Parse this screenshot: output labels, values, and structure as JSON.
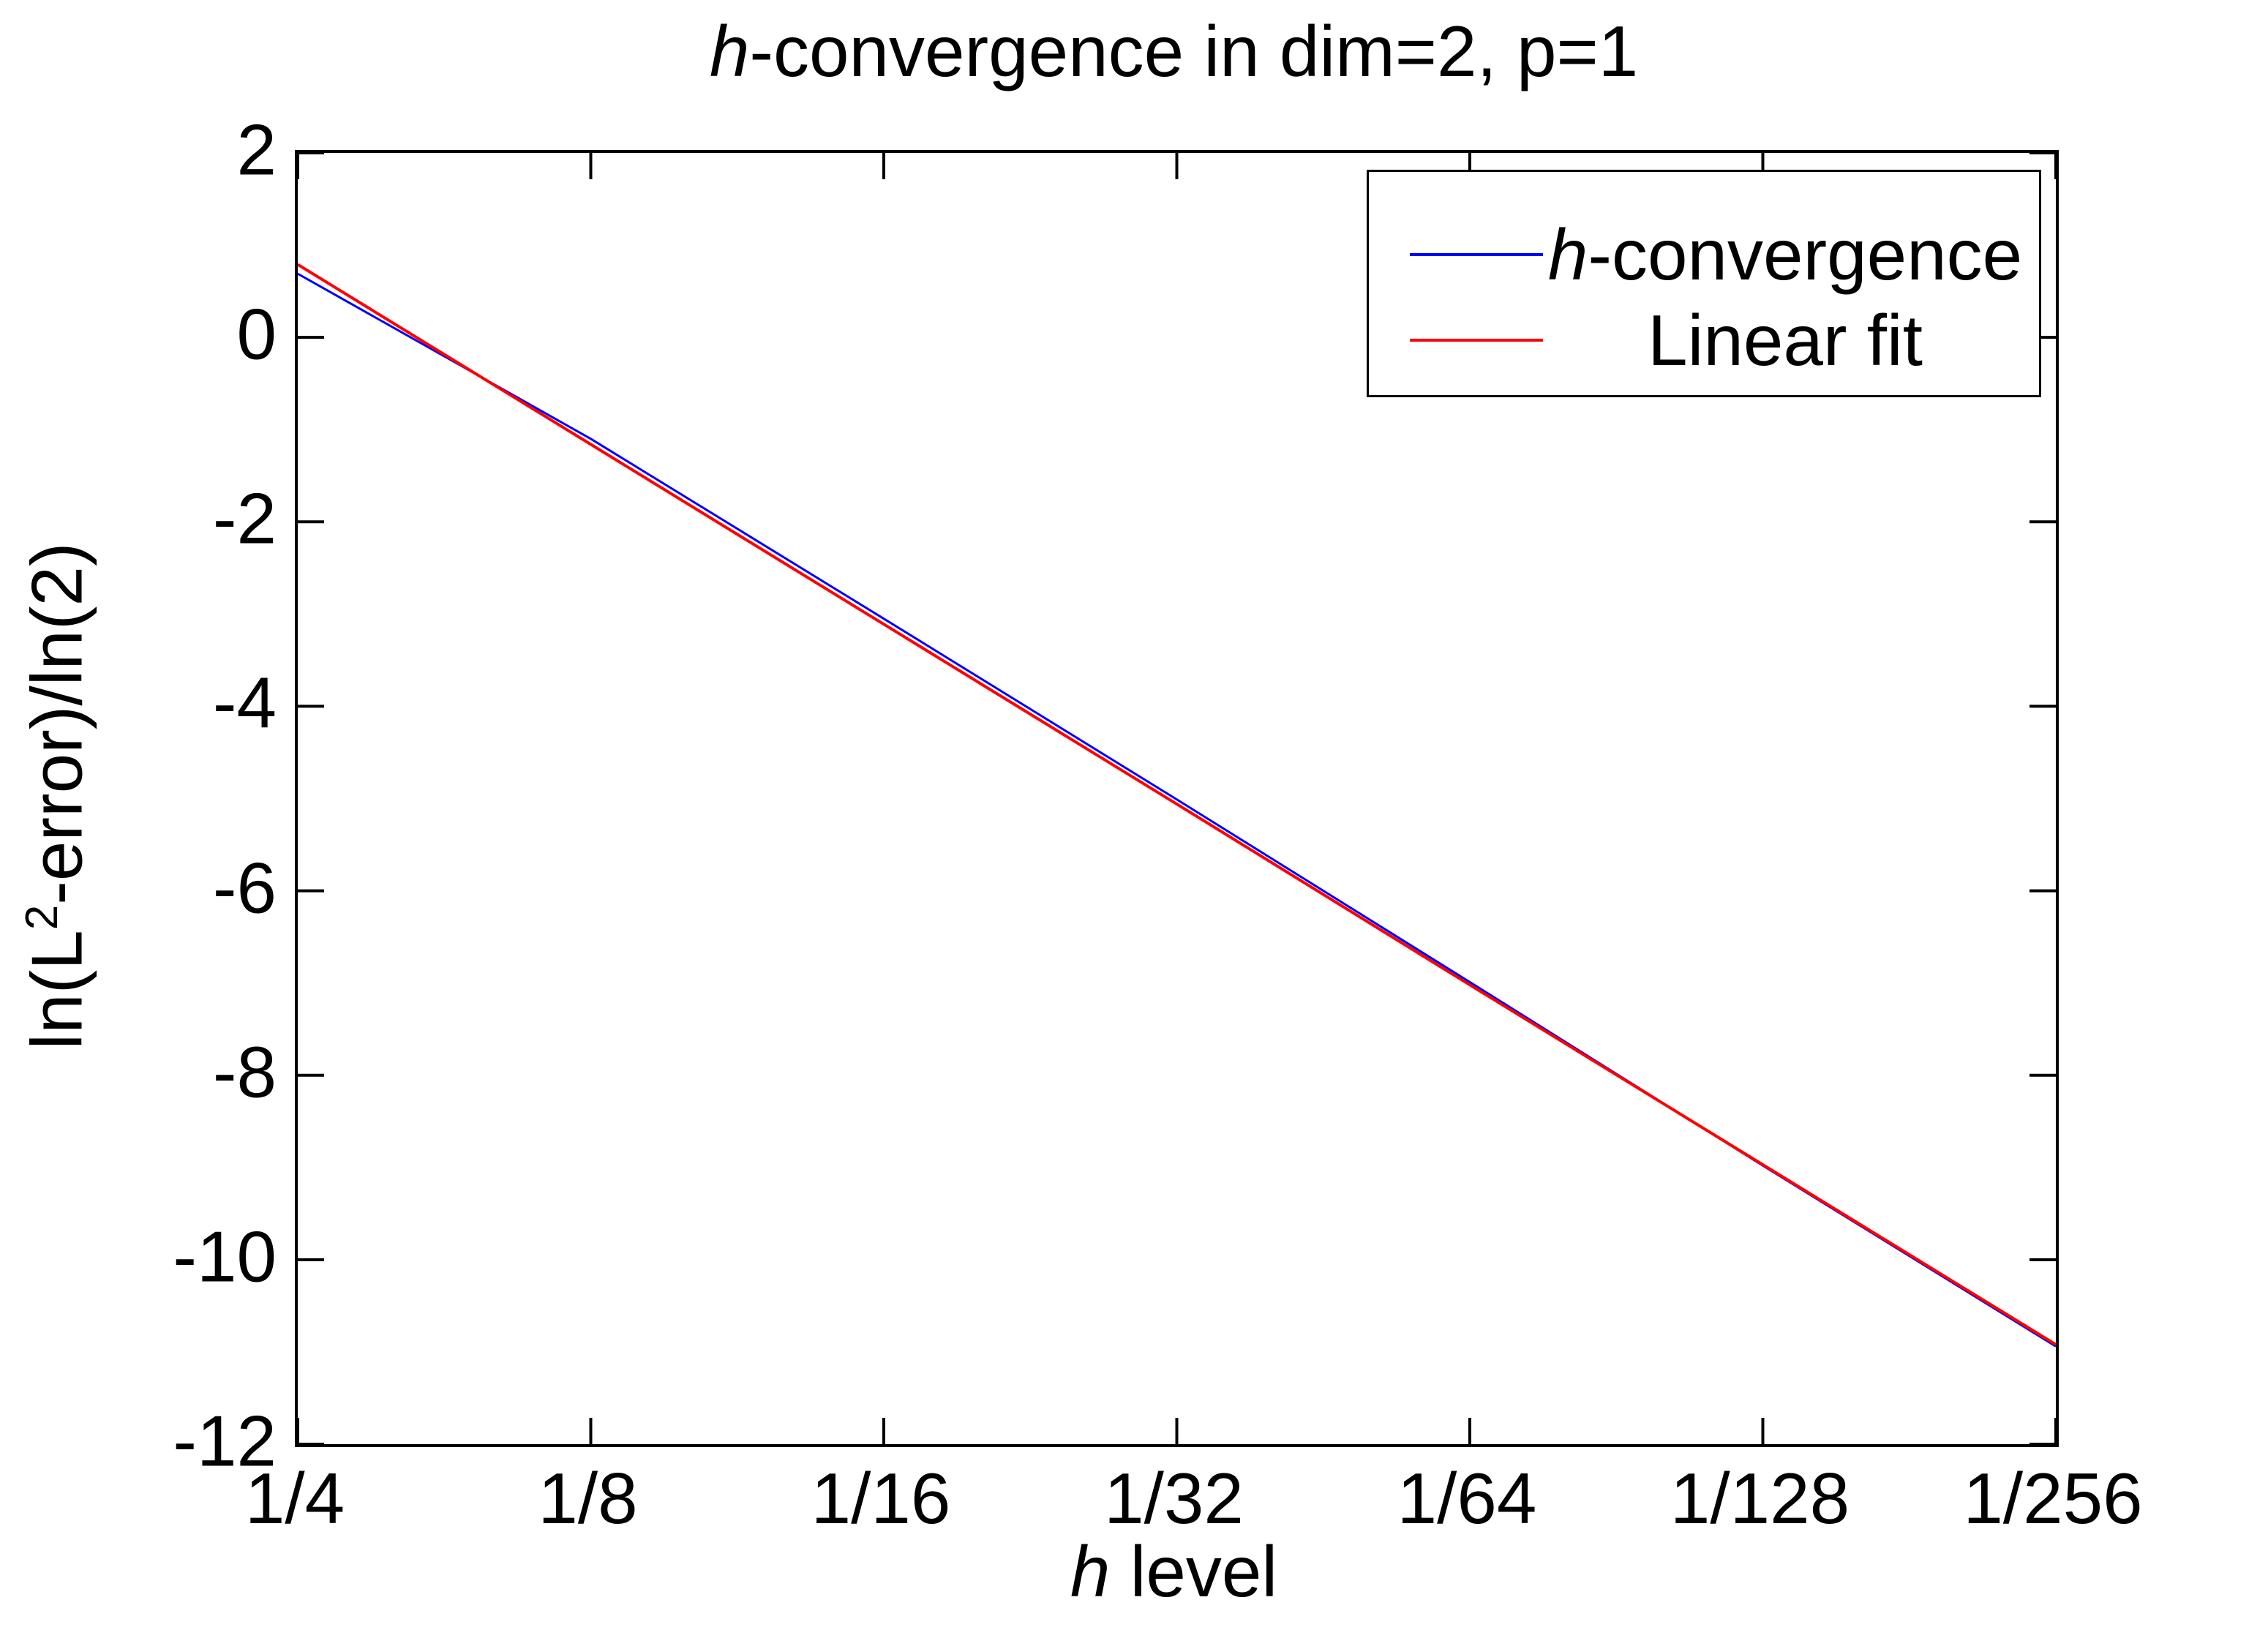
{
  "figure": {
    "background": "#ffffff",
    "axis_color": "#000000",
    "title": {
      "italic": "h",
      "rest": "-convergence in dim=2, p=1"
    },
    "xlabel": {
      "italic": "h",
      "rest": " level"
    },
    "ylabel": {
      "pre": "ln(L",
      "sup": "2",
      "post": "-error)/ln(2)"
    }
  },
  "chart_data": {
    "type": "line",
    "title": "h-convergence in dim=2, p=1",
    "xlabel": "h level",
    "ylabel": "ln(L^2-error)/ln(2)",
    "x_tick_labels": [
      "1/4",
      "1/8",
      "1/16",
      "1/32",
      "1/64",
      "1/128",
      "1/256"
    ],
    "x_levels": [
      2,
      3,
      4,
      5,
      6,
      7,
      8
    ],
    "xlim_levels": [
      2,
      8
    ],
    "y_ticks": [
      2,
      0,
      -2,
      -4,
      -6,
      -8,
      -10,
      -12
    ],
    "y_tick_labels": [
      "2",
      "0",
      "-2",
      "-4",
      "-6",
      "-8",
      "-10",
      "-12"
    ],
    "ylim": [
      -12,
      2
    ],
    "grid": false,
    "legend_position": "top-right",
    "series": [
      {
        "name": "h-convergence",
        "color": "#0000ff",
        "values": [
          0.69,
          -1.1,
          -3.05,
          -5.01,
          -6.99,
          -8.98,
          -10.94
        ]
      },
      {
        "name": "Linear fit",
        "color": "#ff0000",
        "fit_slope_per_level": -1.95,
        "values": [
          0.79,
          -1.16,
          -3.11,
          -5.06,
          -7.02,
          -8.97,
          -10.92
        ]
      }
    ]
  },
  "legend": {
    "entries": [
      {
        "italic": "h",
        "rest": "-convergence",
        "color": "#0000ff"
      },
      {
        "italic": "",
        "rest": "Linear fit",
        "color": "#ff0000"
      }
    ]
  }
}
